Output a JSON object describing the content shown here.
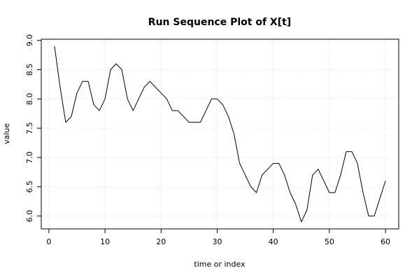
{
  "chart_data": {
    "type": "line",
    "title": "Run Sequence Plot of X[t]",
    "xlabel": "time or index",
    "ylabel": "value",
    "xlim": [
      -1.36,
      62.36
    ],
    "ylim": [
      5.78,
      9.02
    ],
    "x_ticks": [
      0,
      10,
      20,
      30,
      40,
      50,
      60
    ],
    "y_ticks": [
      6.0,
      6.5,
      7.0,
      7.5,
      8.0,
      8.5,
      9.0
    ],
    "x_tick_labels": [
      "0",
      "10",
      "20",
      "30",
      "40",
      "50",
      "60"
    ],
    "y_tick_labels": [
      "6.0",
      "6.5",
      "7.0",
      "7.5",
      "8.0",
      "8.5",
      "9.0"
    ],
    "grid": true,
    "line_color": "#000000",
    "grid_color": "#d9d9d9",
    "series": [
      {
        "x": [
          1,
          2,
          3,
          4,
          5,
          6,
          7,
          8,
          9,
          10,
          11,
          12,
          13,
          14,
          15,
          16,
          17,
          18,
          19,
          20,
          21,
          22,
          23,
          24,
          25,
          26,
          27,
          28,
          29,
          30,
          31,
          32,
          33,
          34,
          35,
          36,
          37,
          38,
          39,
          40,
          41,
          42,
          43,
          44,
          45,
          46,
          47,
          48,
          49,
          50,
          51,
          52,
          53,
          54,
          55,
          56,
          57,
          58,
          59,
          60
        ],
        "values": [
          8.9,
          8.2,
          7.6,
          7.7,
          8.1,
          8.3,
          8.3,
          7.9,
          7.8,
          8.0,
          8.5,
          8.6,
          8.5,
          8.0,
          7.8,
          8.0,
          8.2,
          8.3,
          8.2,
          8.1,
          8.0,
          7.8,
          7.8,
          7.7,
          7.6,
          7.6,
          7.6,
          7.8,
          8.0,
          8.0,
          7.9,
          7.7,
          7.4,
          6.9,
          6.7,
          6.5,
          6.4,
          6.7,
          6.8,
          6.9,
          6.9,
          6.7,
          6.4,
          6.2,
          5.9,
          6.1,
          6.7,
          6.8,
          6.6,
          6.4,
          6.4,
          6.7,
          7.1,
          7.1,
          6.9,
          6.4,
          6.0,
          6.0,
          6.3,
          6.6
        ]
      }
    ]
  }
}
